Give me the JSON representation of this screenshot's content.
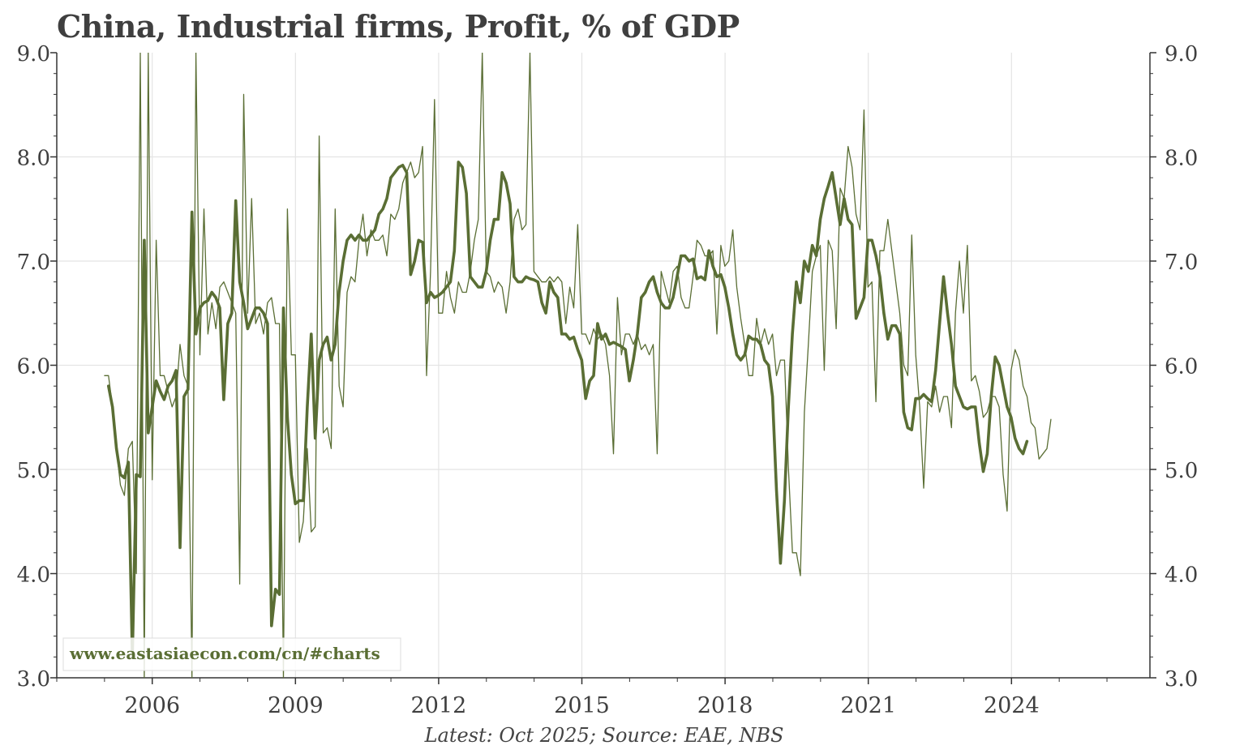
{
  "chart_data": {
    "type": "line",
    "title": "China, Industrial firms, Profit, % of GDP",
    "footer": "Latest: Oct 2025; Source: EAE, NBS",
    "watermark": "www.eastasiaecon.com/cn/#charts",
    "ylim": [
      3.0,
      9.0
    ],
    "y_ticks": [
      "3.0",
      "4.0",
      "5.0",
      "6.0",
      "7.0",
      "8.0",
      "9.0"
    ],
    "x_range": [
      2004.0,
      2026.9
    ],
    "x_ticks": [
      {
        "value": 2006,
        "label": "2006"
      },
      {
        "value": 2009,
        "label": "2009"
      },
      {
        "value": 2012,
        "label": "2012"
      },
      {
        "value": 2015,
        "label": "2015"
      },
      {
        "value": 2018,
        "label": "2018"
      },
      {
        "value": 2021,
        "label": "2021"
      },
      {
        "value": 2024,
        "label": "2024"
      }
    ],
    "colors": {
      "series": "#5a6e34",
      "grid": "#e4e4e4",
      "axis": "#333333",
      "text": "#3f3f3f"
    },
    "series": [
      {
        "name": "Monthly (thin)",
        "start": 2005.0,
        "step": 0.0833,
        "stroke_width": 1.3,
        "values": [
          5.9,
          5.9,
          5.6,
          5.2,
          4.85,
          4.75,
          5.2,
          5.27,
          4.0,
          9.0,
          3.0,
          9.0,
          4.9,
          7.2,
          5.9,
          5.9,
          5.75,
          5.6,
          5.7,
          6.2,
          5.9,
          5.8,
          3.0,
          9.0,
          6.1,
          7.5,
          6.3,
          6.6,
          6.35,
          6.75,
          6.8,
          6.7,
          6.6,
          6.5,
          3.9,
          8.6,
          6.5,
          7.6,
          6.4,
          6.5,
          6.3,
          6.6,
          6.65,
          6.4,
          6.4,
          3.0,
          7.5,
          6.1,
          6.1,
          4.3,
          4.5,
          5.2,
          4.4,
          4.45,
          8.2,
          5.35,
          5.4,
          5.2,
          7.5,
          5.8,
          5.6,
          6.7,
          6.85,
          6.8,
          7.2,
          7.45,
          7.05,
          7.3,
          7.2,
          7.2,
          7.25,
          7.05,
          7.45,
          7.4,
          7.5,
          7.75,
          7.85,
          7.95,
          7.8,
          7.85,
          8.1,
          5.9,
          6.9,
          8.55,
          6.5,
          6.5,
          6.9,
          6.65,
          6.5,
          6.8,
          6.7,
          6.7,
          6.9,
          7.2,
          7.4,
          9.0,
          6.9,
          6.85,
          6.7,
          6.8,
          6.75,
          6.5,
          6.8,
          7.4,
          7.5,
          7.3,
          7.35,
          9.0,
          6.9,
          6.85,
          6.8,
          6.8,
          6.85,
          6.8,
          6.85,
          6.8,
          6.4,
          6.75,
          6.55,
          7.35,
          6.3,
          6.3,
          6.2,
          6.35,
          6.25,
          6.3,
          6.2,
          5.9,
          5.15,
          6.65,
          6.1,
          6.3,
          6.3,
          6.2,
          6.3,
          6.15,
          6.2,
          6.1,
          6.2,
          5.15,
          6.9,
          6.75,
          6.6,
          6.9,
          6.95,
          6.65,
          6.55,
          6.55,
          6.85,
          7.2,
          7.15,
          7.05,
          7.05,
          7.1,
          6.3,
          7.15,
          6.95,
          7.0,
          7.3,
          6.75,
          6.45,
          6.2,
          5.9,
          5.9,
          6.45,
          6.2,
          6.35,
          6.2,
          6.3,
          5.9,
          6.05,
          6.05,
          5.0,
          4.2,
          4.2,
          3.98,
          5.55,
          6.2,
          6.9,
          7.05,
          7.15,
          5.95,
          7.2,
          7.1,
          6.35,
          7.7,
          7.6,
          8.1,
          7.9,
          7.45,
          7.3,
          8.45,
          6.75,
          6.8,
          5.65,
          7.1,
          7.1,
          7.4,
          7.1,
          6.8,
          6.5,
          6.0,
          5.9,
          7.25,
          6.1,
          5.6,
          4.82,
          5.65,
          5.6,
          5.8,
          5.55,
          5.7,
          5.7,
          5.4,
          6.5,
          7.0,
          6.5,
          7.15,
          5.85,
          5.9,
          5.75,
          5.5,
          5.55,
          5.7,
          5.7,
          5.6,
          4.95,
          4.6,
          5.95,
          6.15,
          6.05,
          5.8,
          5.7,
          5.45,
          5.4,
          5.1,
          5.15,
          5.2,
          5.48
        ]
      },
      {
        "name": "Smoothed (thick)",
        "start": 2005.083,
        "step": 0.0833,
        "stroke_width": 3.6,
        "values": [
          5.8,
          5.6,
          5.2,
          4.95,
          4.92,
          5.07,
          3.2,
          4.95,
          4.93,
          7.2,
          5.35,
          5.6,
          5.85,
          5.75,
          5.67,
          5.8,
          5.85,
          5.95,
          4.25,
          5.7,
          5.77,
          7.47,
          6.3,
          6.55,
          6.6,
          6.62,
          6.7,
          6.65,
          6.55,
          5.67,
          6.4,
          6.5,
          7.58,
          6.8,
          6.6,
          6.35,
          6.45,
          6.55,
          6.55,
          6.5,
          6.4,
          3.5,
          3.85,
          3.8,
          6.55,
          5.5,
          4.95,
          4.67,
          4.7,
          4.7,
          5.6,
          6.3,
          5.3,
          6.05,
          6.2,
          6.27,
          6.05,
          6.2,
          6.7,
          7.0,
          7.2,
          7.25,
          7.2,
          7.25,
          7.2,
          7.2,
          7.25,
          7.3,
          7.45,
          7.5,
          7.6,
          7.8,
          7.85,
          7.9,
          7.92,
          7.85,
          6.87,
          7.0,
          7.2,
          7.18,
          6.6,
          6.7,
          6.65,
          6.67,
          6.7,
          6.75,
          6.8,
          7.1,
          7.95,
          7.9,
          7.65,
          6.85,
          6.8,
          6.75,
          6.75,
          6.9,
          7.2,
          7.4,
          7.4,
          7.85,
          7.75,
          7.55,
          6.85,
          6.8,
          6.8,
          6.85,
          6.83,
          6.82,
          6.8,
          6.6,
          6.5,
          6.8,
          6.7,
          6.65,
          6.3,
          6.3,
          6.25,
          6.27,
          6.15,
          6.05,
          5.68,
          5.85,
          5.9,
          6.4,
          6.25,
          6.3,
          6.2,
          6.22,
          6.2,
          6.18,
          6.15,
          5.85,
          6.05,
          6.3,
          6.65,
          6.7,
          6.8,
          6.85,
          6.7,
          6.6,
          6.55,
          6.55,
          6.65,
          6.85,
          7.05,
          7.05,
          7.0,
          7.02,
          6.83,
          6.85,
          6.82,
          7.1,
          6.95,
          6.85,
          6.87,
          6.75,
          6.55,
          6.3,
          6.1,
          6.05,
          6.1,
          6.28,
          6.25,
          6.25,
          6.2,
          6.05,
          6.0,
          5.7,
          4.8,
          4.1,
          4.7,
          5.6,
          6.3,
          6.8,
          6.6,
          7.0,
          6.9,
          7.15,
          7.05,
          7.4,
          7.6,
          7.72,
          7.85,
          7.6,
          7.35,
          7.6,
          7.4,
          7.35,
          6.45,
          6.55,
          6.65,
          7.2,
          7.2,
          7.05,
          6.85,
          6.5,
          6.25,
          6.38,
          6.38,
          6.3,
          5.55,
          5.4,
          5.38,
          5.68,
          5.68,
          5.72,
          5.68,
          5.65,
          5.95,
          6.4,
          6.85,
          6.5,
          6.2,
          5.8,
          5.7,
          5.6,
          5.58,
          5.6,
          5.6,
          5.25,
          4.98,
          5.15,
          5.7,
          6.08,
          6.0,
          5.8,
          5.6,
          5.5,
          5.3,
          5.2,
          5.15,
          5.27
        ]
      }
    ]
  }
}
